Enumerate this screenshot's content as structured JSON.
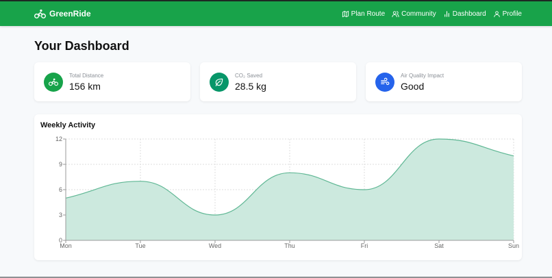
{
  "nav": {
    "brand": "GreenRide",
    "links": [
      {
        "label": "Plan Route",
        "icon": "map-icon"
      },
      {
        "label": "Community",
        "icon": "users-icon"
      },
      {
        "label": "Dashboard",
        "icon": "bar-chart-icon"
      },
      {
        "label": "Profile",
        "icon": "user-icon"
      }
    ]
  },
  "page": {
    "title": "Your Dashboard"
  },
  "stats": [
    {
      "label": "Total Distance",
      "value": "156 km",
      "icon": "bike-icon",
      "color": "#17a34a"
    },
    {
      "label": "CO₂ Saved",
      "value": "28.5 kg",
      "icon": "leaf-icon",
      "color": "#079669"
    },
    {
      "label": "Air Quality Impact",
      "value": "Good",
      "icon": "wind-icon",
      "color": "#2563eb"
    }
  ],
  "colors": {
    "brand": "#18a34a",
    "area_fill": "#cce9de",
    "area_stroke": "#5fb794"
  },
  "chart_data": {
    "type": "area",
    "title": "Weekly Activity",
    "categories": [
      "Mon",
      "Tue",
      "Wed",
      "Thu",
      "Fri",
      "Sat",
      "Sun"
    ],
    "values": [
      5,
      7,
      3,
      8,
      6,
      12,
      10
    ],
    "xlabel": "",
    "ylabel": "",
    "ylim": [
      0,
      12
    ],
    "yticks": [
      0,
      3,
      6,
      9,
      12
    ],
    "grid": true,
    "legend": false
  }
}
